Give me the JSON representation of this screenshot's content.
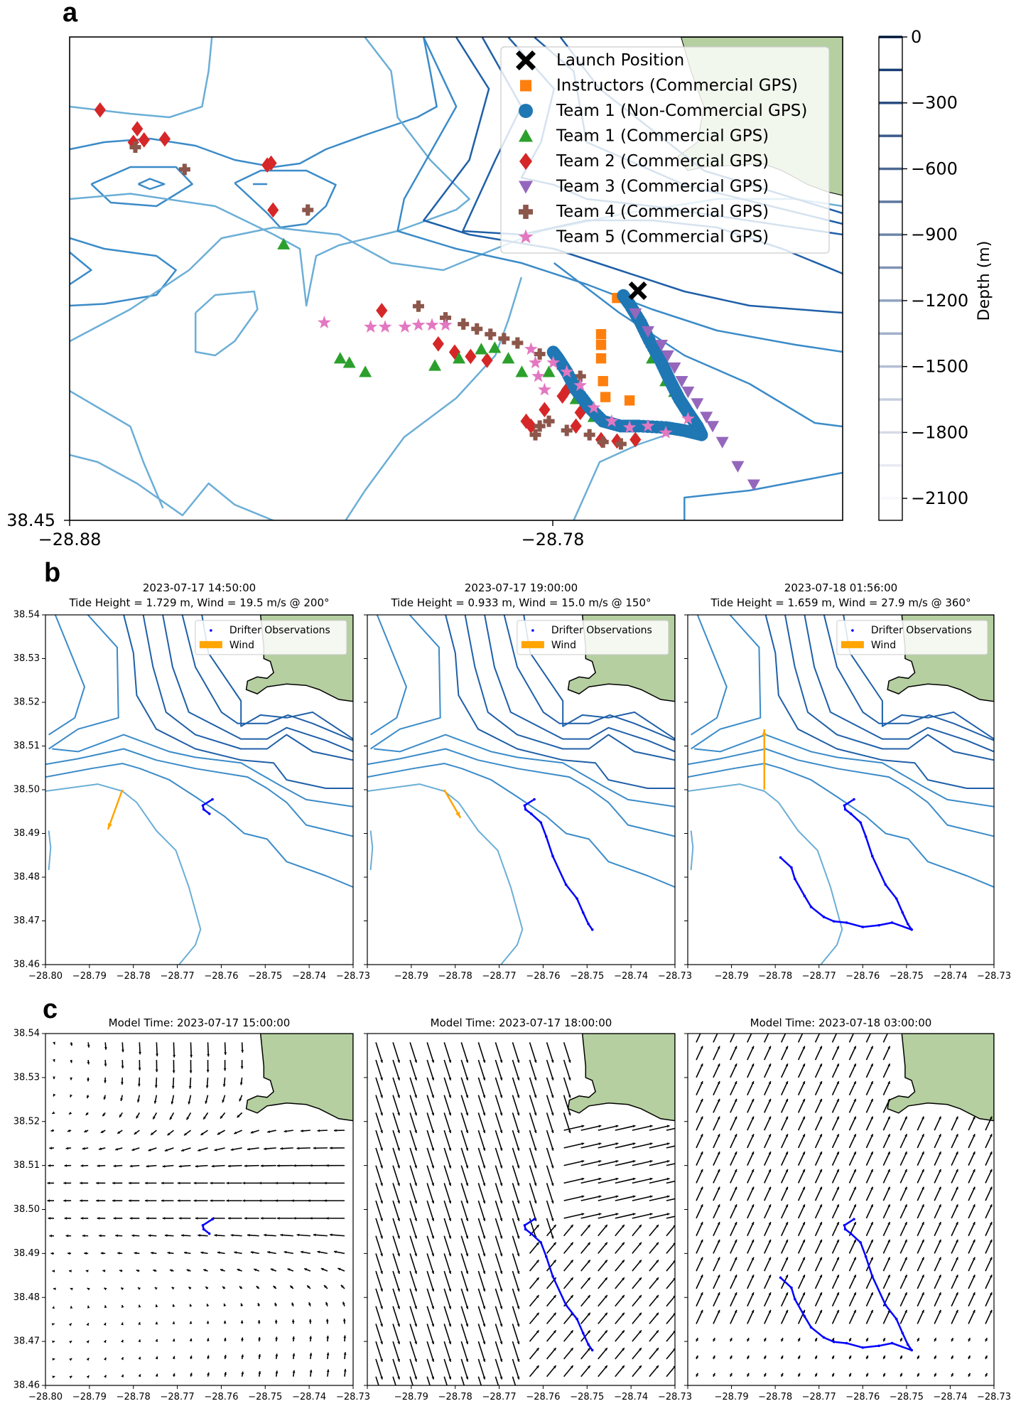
{
  "figure": {
    "panel_labels": {
      "a": "a",
      "b": "b",
      "c": "c"
    }
  },
  "colors": {
    "land": "#b5cfa0",
    "drifter": "#0000ff",
    "wind": "#ffa500",
    "contour_dark": "#08306b",
    "contour_mid": "#2b7bba",
    "contour_light": "#6baed6"
  },
  "chart_data": [
    {
      "panel": "a",
      "type": "scatter",
      "title": "",
      "xlim": [
        -28.88,
        -28.72
      ],
      "ylim": [
        38.45,
        38.55
      ],
      "xticks": [
        {
          "value": -28.88,
          "label": "−28.88"
        },
        {
          "value": -28.78,
          "label": "−28.78"
        }
      ],
      "yticks": [
        {
          "value": 38.45,
          "label": "38.45"
        }
      ],
      "legend_position": "top-right",
      "colorbar": {
        "label": "Depth (m)",
        "range": [
          -2200,
          0
        ],
        "levels": [
          0,
          -150,
          -300,
          -450,
          -600,
          -750,
          -900,
          -1050,
          -1200,
          -1350,
          -1500,
          -1650,
          -1800,
          -1950,
          -2100
        ],
        "ticks": [
          {
            "value": 0,
            "label": "0"
          },
          {
            "value": -300,
            "label": "−300"
          },
          {
            "value": -600,
            "label": "−600"
          },
          {
            "value": -900,
            "label": "−900"
          },
          {
            "value": -1200,
            "label": "−1200"
          },
          {
            "value": -1500,
            "label": "−1500"
          },
          {
            "value": -1800,
            "label": "−1800"
          },
          {
            "value": -2100,
            "label": "−2100"
          }
        ]
      },
      "series": [
        {
          "name": "Launch Position",
          "marker": "x",
          "color": "#000000",
          "points": [
            [
              -28.7624,
              38.4975
            ]
          ]
        },
        {
          "name": "Instructors (Commercial GPS)",
          "marker": "square",
          "color": "#ff7f0e",
          "points": [
            [
              -28.7667,
              38.496
            ],
            [
              -28.77,
              38.4885
            ],
            [
              -28.77,
              38.4863
            ],
            [
              -28.77,
              38.4835
            ],
            [
              -28.7696,
              38.4788
            ],
            [
              -28.7691,
              38.4755
            ],
            [
              -28.7641,
              38.4748
            ]
          ]
        },
        {
          "name": "Team 1 (Non-Commercial GPS)",
          "marker": "circle",
          "color": "#1f77b4",
          "points": [
            [
              -28.7654,
              38.4965
            ],
            [
              -28.7641,
              38.4947
            ],
            [
              -28.7618,
              38.4909
            ],
            [
              -28.76,
              38.4872
            ],
            [
              -28.7575,
              38.4826
            ],
            [
              -28.7557,
              38.4788
            ],
            [
              -28.7538,
              38.4751
            ],
            [
              -28.752,
              38.4723
            ],
            [
              -28.7501,
              38.4695
            ],
            [
              -28.7492,
              38.4677
            ],
            [
              -28.7529,
              38.4686
            ],
            [
              -28.7566,
              38.4692
            ],
            [
              -28.7622,
              38.4695
            ],
            [
              -28.7659,
              38.4695
            ],
            [
              -28.7696,
              38.4705
            ],
            [
              -28.7724,
              38.4733
            ],
            [
              -28.7752,
              38.477
            ],
            [
              -28.7771,
              38.4807
            ],
            [
              -28.7789,
              38.4835
            ],
            [
              -28.7799,
              38.4848
            ]
          ]
        },
        {
          "name": "Team 1 (Commercial GPS)",
          "marker": "triangle-up",
          "color": "#2ca02c",
          "points": [
            [
              -28.8357,
              38.5071
            ],
            [
              -28.824,
              38.4835
            ],
            [
              -28.8221,
              38.4826
            ],
            [
              -28.8188,
              38.4807
            ],
            [
              -28.8044,
              38.482
            ],
            [
              -28.7994,
              38.4835
            ],
            [
              -28.7948,
              38.4854
            ],
            [
              -28.792,
              38.4857
            ],
            [
              -28.7892,
              38.4835
            ],
            [
              -28.7864,
              38.4807
            ],
            [
              -28.7808,
              38.4807
            ],
            [
              -28.7752,
              38.4751
            ],
            [
              -28.7715,
              38.4714
            ],
            [
              -28.7641,
              38.4695
            ],
            [
              -28.7594,
              38.4835
            ],
            [
              -28.7566,
              38.4788
            ],
            [
              -28.7548,
              38.4766
            ],
            [
              -28.7492,
              38.4681
            ]
          ]
        },
        {
          "name": "Team 2 (Commercial GPS)",
          "marker": "diamond",
          "color": "#d62728",
          "points": [
            [
              -28.8737,
              38.5349
            ],
            [
              -28.866,
              38.531
            ],
            [
              -28.8646,
              38.5287
            ],
            [
              -28.8668,
              38.5282
            ],
            [
              -28.8603,
              38.5289
            ],
            [
              -28.8391,
              38.5235
            ],
            [
              -28.8383,
              38.5239
            ],
            [
              -28.8379,
              38.5142
            ],
            [
              -28.8154,
              38.4934
            ],
            [
              -28.8037,
              38.4865
            ],
            [
              -28.8003,
              38.4848
            ],
            [
              -28.797,
              38.4839
            ],
            [
              -28.7936,
              38.4831
            ],
            [
              -28.7855,
              38.4705
            ],
            [
              -28.7845,
              38.4695
            ],
            [
              -28.7817,
              38.4729
            ],
            [
              -28.778,
              38.4757
            ],
            [
              -28.7771,
              38.477
            ],
            [
              -28.7752,
              38.4695
            ],
            [
              -28.7743,
              38.4723
            ],
            [
              -28.77,
              38.4667
            ],
            [
              -28.7667,
              38.4664
            ],
            [
              -28.7629,
              38.4667
            ]
          ]
        },
        {
          "name": "Team 3 (Commercial GPS)",
          "marker": "triangle-down",
          "color": "#9467bd",
          "points": [
            [
              -28.7629,
              38.4928
            ],
            [
              -28.7603,
              38.4891
            ],
            [
              -28.7575,
              38.4863
            ],
            [
              -28.7562,
              38.4841
            ],
            [
              -28.7548,
              38.4816
            ],
            [
              -28.7533,
              38.4788
            ],
            [
              -28.752,
              38.4766
            ],
            [
              -28.7501,
              38.4742
            ],
            [
              -28.7482,
              38.4714
            ],
            [
              -28.7469,
              38.4695
            ],
            [
              -28.7449,
              38.4662
            ],
            [
              -28.7417,
              38.4612
            ],
            [
              -28.7384,
              38.4574
            ]
          ]
        },
        {
          "name": "Team 4 (Commercial GPS)",
          "marker": "plus",
          "color": "#8c564b",
          "points": [
            [
              -28.8664,
              38.5272
            ],
            [
              -28.8562,
              38.5226
            ],
            [
              -28.8307,
              38.5142
            ],
            [
              -28.8078,
              38.4943
            ],
            [
              -28.8022,
              38.4919
            ],
            [
              -28.7985,
              38.4906
            ],
            [
              -28.7957,
              38.4896
            ],
            [
              -28.7929,
              38.4885
            ],
            [
              -28.7901,
              38.4876
            ],
            [
              -28.7873,
              38.4867
            ],
            [
              -28.7827,
              38.4844
            ],
            [
              -28.778,
              38.4816
            ],
            [
              -28.7743,
              38.4798
            ],
            [
              -28.7836,
              38.4677
            ],
            [
              -28.7827,
              38.4695
            ],
            [
              -28.7808,
              38.4705
            ],
            [
              -28.7771,
              38.4686
            ],
            [
              -28.7724,
              38.4677
            ],
            [
              -28.7696,
              38.4662
            ],
            [
              -28.7659,
              38.4658
            ]
          ]
        },
        {
          "name": "Team 5 (Commercial GPS)",
          "marker": "star",
          "color": "#e377c2",
          "points": [
            [
              -28.8273,
              38.4909
            ],
            [
              -28.8177,
              38.49
            ],
            [
              -28.8147,
              38.49
            ],
            [
              -28.8106,
              38.49
            ],
            [
              -28.8078,
              38.4904
            ],
            [
              -28.805,
              38.4904
            ],
            [
              -28.8022,
              38.4904
            ],
            [
              -28.7845,
              38.4854
            ],
            [
              -28.7836,
              38.4826
            ],
            [
              -28.783,
              38.4798
            ],
            [
              -28.7817,
              38.477
            ],
            [
              -28.7799,
              38.4826
            ],
            [
              -28.7771,
              38.4807
            ],
            [
              -28.7743,
              38.4779
            ],
            [
              -28.7715,
              38.4733
            ],
            [
              -28.7678,
              38.4705
            ],
            [
              -28.7641,
              38.4692
            ],
            [
              -28.7603,
              38.4695
            ],
            [
              -28.7566,
              38.4681
            ],
            [
              -28.752,
              38.471
            ]
          ]
        }
      ]
    },
    {
      "panel": "b",
      "type": "line",
      "xlim": [
        -28.8,
        -28.73
      ],
      "ylim": [
        38.46,
        38.54
      ],
      "xticks": [
        {
          "value": -28.8,
          "label": "−28.80"
        },
        {
          "value": -28.79,
          "label": "−28.79"
        },
        {
          "value": -28.78,
          "label": "−28.78"
        },
        {
          "value": -28.77,
          "label": "−28.77"
        },
        {
          "value": -28.76,
          "label": "−28.76"
        },
        {
          "value": -28.75,
          "label": "−28.75"
        },
        {
          "value": -28.74,
          "label": "−28.74"
        },
        {
          "value": -28.73,
          "label": "−28.73"
        }
      ],
      "yticks": [
        {
          "value": 38.54,
          "label": "38.54"
        },
        {
          "value": 38.53,
          "label": "38.53"
        },
        {
          "value": 38.52,
          "label": "38.52"
        },
        {
          "value": 38.51,
          "label": "38.51"
        },
        {
          "value": 38.5,
          "label": "38.50"
        },
        {
          "value": 38.49,
          "label": "38.49"
        },
        {
          "value": 38.48,
          "label": "38.48"
        },
        {
          "value": 38.47,
          "label": "38.47"
        },
        {
          "value": 38.46,
          "label": "38.46"
        }
      ],
      "legend": {
        "position": "top-right",
        "entries": [
          "Drifter Observations",
          "Wind"
        ]
      },
      "wind_origin": [
        -28.7825,
        38.5
      ],
      "subplots": [
        {
          "time": "2023-07-17 14:50:00",
          "info": "Tide Height = 1.729 m, Wind = 19.5 m/s @ 200°",
          "tide_height_m": 1.729,
          "wind_speed_ms": 19.5,
          "wind_direction_deg": 200,
          "observations_shown": 4
        },
        {
          "time": "2023-07-17 19:00:00",
          "info": "Tide Height = 0.933 m, Wind = 15.0 m/s @ 150°",
          "tide_height_m": 0.933,
          "wind_speed_ms": 15.0,
          "wind_direction_deg": 150,
          "observations_shown": 12
        },
        {
          "time": "2023-07-18 01:56:00",
          "info": "Tide Height = 1.659 m, Wind = 27.9 m/s @ 360°",
          "tide_height_m": 1.659,
          "wind_speed_ms": 27.9,
          "wind_direction_deg": 360,
          "observations_shown": 23
        }
      ],
      "drifter_track": [
        [
          -28.762,
          38.4978
        ],
        [
          -28.7642,
          38.4964
        ],
        [
          -28.764,
          38.4955
        ],
        [
          -28.7627,
          38.4945
        ],
        [
          -28.7605,
          38.4925
        ],
        [
          -28.7593,
          38.4893
        ],
        [
          -28.7578,
          38.4848
        ],
        [
          -28.7548,
          38.4783
        ],
        [
          -28.7523,
          38.4751
        ],
        [
          -28.7509,
          38.4719
        ],
        [
          -28.7497,
          38.4693
        ],
        [
          -28.7488,
          38.468
        ],
        [
          -28.7533,
          38.4696
        ],
        [
          -28.7563,
          38.469
        ],
        [
          -28.76,
          38.4686
        ],
        [
          -28.7637,
          38.4696
        ],
        [
          -28.7666,
          38.4699
        ],
        [
          -28.7689,
          38.4709
        ],
        [
          -28.7718,
          38.4732
        ],
        [
          -28.7733,
          38.4757
        ],
        [
          -28.7755,
          38.4796
        ],
        [
          -28.7763,
          38.4822
        ],
        [
          -28.7788,
          38.4845
        ]
      ]
    },
    {
      "panel": "c",
      "type": "quiver",
      "xlim": [
        -28.8,
        -28.73
      ],
      "ylim": [
        38.46,
        38.54
      ],
      "subplots": [
        {
          "title": "Model Time: 2023-07-17 15:00:00",
          "observations_shown": 4
        },
        {
          "title": "Model Time: 2023-07-17 18:00:00",
          "observations_shown": 12
        },
        {
          "title": "Model Time: 2023-07-18 03:00:00",
          "observations_shown": 23
        }
      ]
    }
  ]
}
